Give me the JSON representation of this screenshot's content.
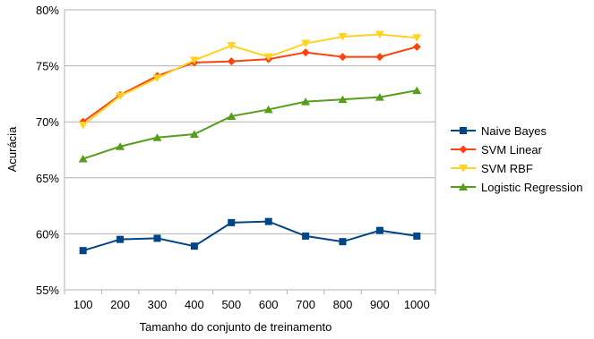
{
  "chart_data": {
    "type": "line",
    "xlabel": "Tamanho do conjunto de treinamento",
    "ylabel": "Acurácia",
    "categories": [
      "100",
      "200",
      "300",
      "400",
      "500",
      "600",
      "700",
      "800",
      "900",
      "1000"
    ],
    "ylim": [
      55,
      80
    ],
    "yticks": [
      "55%",
      "60%",
      "65%",
      "70%",
      "75%",
      "80%"
    ],
    "y_unit": "%",
    "grid": "horizontal",
    "legend_position": "right",
    "series": [
      {
        "name": "Naive Bayes",
        "color": "#004586",
        "marker": "square",
        "values": [
          58.5,
          59.5,
          59.6,
          58.9,
          61.0,
          61.1,
          59.8,
          59.3,
          60.3,
          59.8
        ]
      },
      {
        "name": "SVM Linear",
        "color": "#ff420e",
        "marker": "diamond",
        "values": [
          70.0,
          72.4,
          74.1,
          75.3,
          75.4,
          75.6,
          76.2,
          75.8,
          75.8,
          76.7
        ]
      },
      {
        "name": "SVM RBF",
        "color": "#ffd320",
        "marker": "triangle-down",
        "values": [
          69.7,
          72.3,
          73.9,
          75.5,
          76.8,
          75.8,
          77.0,
          77.6,
          77.8,
          77.5
        ]
      },
      {
        "name": "Logistic Regression",
        "color": "#579d1c",
        "marker": "triangle-up",
        "values": [
          66.7,
          67.8,
          68.6,
          68.9,
          70.5,
          71.1,
          71.8,
          72.0,
          72.2,
          72.8
        ]
      }
    ]
  }
}
